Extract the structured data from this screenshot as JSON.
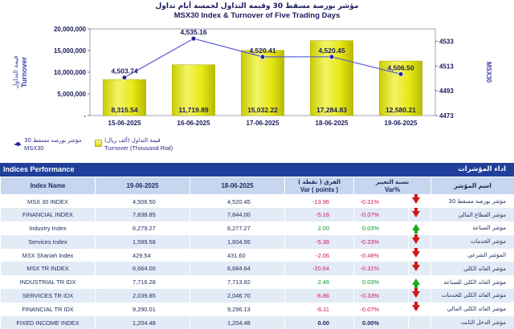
{
  "chart_data": {
    "type": "bar+line",
    "title_ar": "مؤشر بورصة مسقط 30 وقيمة التداول لخمسة أيام تداول",
    "title": "MSX30 Index & Turnover of Five Trading Days",
    "categories": [
      "15-06-2025",
      "16-06-2025",
      "17-06-2025",
      "18-06-2025",
      "19-06-2025"
    ],
    "series": [
      {
        "name": "Turnover (Thousand Rial)",
        "type": "bar",
        "axis": "left",
        "values": [
          8315.54,
          11719.89,
          15032.22,
          17284.83,
          12580.21
        ],
        "labels": [
          "8,315.54",
          "11,719.89",
          "15,032.22",
          "17,284.83",
          "12,580.21"
        ]
      },
      {
        "name": "MSX30",
        "type": "line",
        "axis": "right",
        "values": [
          4503.74,
          4535.16,
          4520.41,
          4520.45,
          4506.5
        ],
        "labels": [
          "4,503.74",
          "4,535.16",
          "4,520.41",
          "4,520.45",
          "4,506.50"
        ]
      }
    ],
    "ylabel_left_ar": "قيمة التداول",
    "ylabel_left": "Turnover",
    "ylabel_right": "MSX30",
    "left_ticks": [
      "20,000,000",
      "15,000,000",
      "10,000,000",
      "5,000,000",
      "-"
    ],
    "left_tick_values": [
      20000,
      15000,
      10000,
      5000,
      0
    ],
    "ylim_left": [
      0,
      20000
    ],
    "right_ticks": [
      "4533",
      "4513",
      "4493",
      "4473"
    ],
    "right_tick_values": [
      4533,
      4513,
      4493,
      4473
    ],
    "ylim_right": [
      4473,
      4543
    ],
    "colors": {
      "bar": "#e8ea1a",
      "line": "#5a5ad8",
      "marker": "#2a2a8a"
    }
  },
  "legend": {
    "line_ar": "مؤشر بورصة مسقط 30",
    "line_en": "MSX30",
    "bar_ar": "قيمة التداول (ألف ريال)",
    "bar_en": "Turnover (Thousand Rial)"
  },
  "table": {
    "title_en": "Indices Performance",
    "title_ar": "اداء المؤشرات",
    "headers": {
      "name": "Index Name",
      "d1": "19-06-2025",
      "d2": "18-06-2025",
      "var_ar": "الفرق ( نقطة )",
      "var_en": "Var ( points )",
      "pct_ar": "نسبة التغيير",
      "pct_en": "Var%",
      "name_ar": "اسم المؤشر"
    },
    "rows": [
      {
        "name": "MSX 30 INDEX",
        "v1": "4,506.50",
        "v2": "4,520.45",
        "chg": "-13.96",
        "pct": "-0.31%",
        "dir": "down",
        "name_ar": "مؤشر بورصة مسقط 30"
      },
      {
        "name": "FINANCIAL INDEX",
        "v1": "7,838.85",
        "v2": "7,844.00",
        "chg": "-5.16",
        "pct": "-0.07%",
        "dir": "down",
        "name_ar": "مؤشر القطاع المالي"
      },
      {
        "name": "Industry Index",
        "v1": "6,279.27",
        "v2": "6,277.27",
        "chg": "2.00",
        "pct": "0.03%",
        "dir": "up",
        "name_ar": "مؤشر الصناعة"
      },
      {
        "name": "Services Index",
        "v1": "1,599.58",
        "v2": "1,604.95",
        "chg": "-5.38",
        "pct": "-0.33%",
        "dir": "down",
        "name_ar": "مؤشر الخدمات"
      },
      {
        "name": "MSX Shariah Index",
        "v1": "429.54",
        "v2": "431.60",
        "chg": "-2.06",
        "pct": "-0.48%",
        "dir": "down",
        "name_ar": "المؤشر الشرعي"
      },
      {
        "name": "MSX TR INDEX",
        "v1": "6,664.00",
        "v2": "6,684.64",
        "chg": "-20.64",
        "pct": "-0.31%",
        "dir": "down",
        "name_ar": "مؤشر العائد الكلي"
      },
      {
        "name": "INDUSTRIAL TR IDX",
        "v1": "7,716.28",
        "v2": "7,713.82",
        "chg": "2.46",
        "pct": "0.03%",
        "dir": "up",
        "name_ar": "مؤشر العائد الكلي للصناعة"
      },
      {
        "name": "SERVICES TR IDX",
        "v1": "2,039.85",
        "v2": "2,046.70",
        "chg": "-6.86",
        "pct": "-0.33%",
        "dir": "down",
        "name_ar": "مؤشر العائد الكلي للخدمات"
      },
      {
        "name": "FINANCIAL TR IDX",
        "v1": "9,290.01",
        "v2": "9,296.13",
        "chg": "-6.11",
        "pct": "-0.07%",
        "dir": "down",
        "name_ar": "مؤشر العائد الكلي المالي"
      },
      {
        "name": "FIXED INCOME INDEX",
        "v1": "1,204.48",
        "v2": "1,204.48",
        "chg": "0.00",
        "pct": "0.00%",
        "dir": "flat",
        "name_ar": "مؤشر الدخل الثابت"
      }
    ]
  }
}
